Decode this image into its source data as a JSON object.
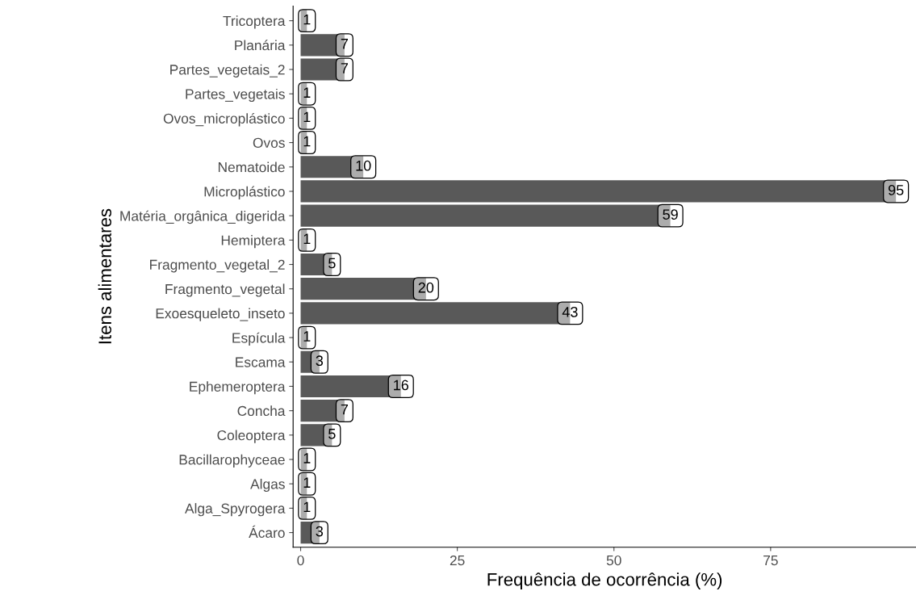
{
  "chart_data": {
    "type": "bar",
    "orientation": "horizontal",
    "xlabel": "Frequência de ocorrência (%)",
    "ylabel": "Itens alimentares",
    "categories": [
      "Tricoptera",
      "Planária",
      "Partes_vegetais_2",
      "Partes_vegetais",
      "Ovos_microplástico",
      "Ovos",
      "Nematoide",
      "Microplástico",
      "Matéria_orgânica_digerida",
      "Hemiptera",
      "Fragmento_vegetal_2",
      "Fragmento_vegetal",
      "Exoesqueleto_inseto",
      "Espícula",
      "Escama",
      "Ephemeroptera",
      "Concha",
      "Coleoptera",
      "Bacillarophyceae",
      "Algas",
      "Alga_Spyrogera",
      "Ácaro"
    ],
    "values": [
      1,
      7,
      7,
      1,
      1,
      1,
      10,
      95,
      59,
      1,
      5,
      20,
      43,
      1,
      3,
      16,
      7,
      5,
      1,
      1,
      1,
      3
    ],
    "color": "#595959",
    "data_labels": true,
    "grid": false,
    "xlim": [
      -1.2,
      98.2
    ],
    "xticks": [
      0,
      25,
      50,
      75
    ]
  }
}
